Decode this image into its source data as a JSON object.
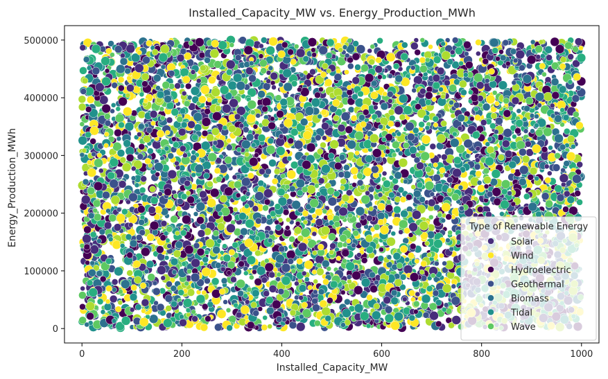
{
  "chart_data": {
    "type": "scatter",
    "title": "Installed_Capacity_MW vs. Energy_Production_MWh",
    "xlabel": "Installed_Capacity_MW",
    "ylabel": "Energy_Production_MWh",
    "xlim": [
      -35,
      1035
    ],
    "ylim": [
      -25000,
      525000
    ],
    "xticks": [
      0,
      200,
      400,
      600,
      800,
      1000
    ],
    "xtick_labels": [
      "0",
      "200",
      "400",
      "600",
      "800",
      "1000"
    ],
    "yticks": [
      0,
      100000,
      200000,
      300000,
      400000,
      500000
    ],
    "ytick_labels": [
      "0",
      "100000",
      "200000",
      "300000",
      "400000",
      "500000"
    ],
    "grid": false,
    "legend": {
      "title": "Type of Renewable Energy",
      "placement": "lower-right",
      "entries": [
        {
          "label": "Solar",
          "color": "#472d7b"
        },
        {
          "label": "Wind",
          "color": "#fde725"
        },
        {
          "label": "Hydroelectric",
          "color": "#440154"
        },
        {
          "label": "Geothermal",
          "color": "#3b528b"
        },
        {
          "label": "Biomass",
          "color": "#2c728e"
        },
        {
          "label": "Tidal",
          "color": "#21918c"
        },
        {
          "label": "Wave",
          "color": "#5ec962"
        }
      ]
    },
    "series_colors": [
      "#440154",
      "#472d7b",
      "#3b528b",
      "#2c728e",
      "#21918c",
      "#28ae80",
      "#5ec962",
      "#addc30",
      "#fde725"
    ],
    "series": [
      {
        "name": "Solar",
        "x_range": [
          0,
          1000
        ],
        "y_range": [
          1000,
          500000
        ],
        "approx_points": 1000
      },
      {
        "name": "Wind",
        "x_range": [
          0,
          1000
        ],
        "y_range": [
          1000,
          500000
        ],
        "approx_points": 1000
      },
      {
        "name": "Hydroelectric",
        "x_range": [
          0,
          1000
        ],
        "y_range": [
          1000,
          500000
        ],
        "approx_points": 1000
      },
      {
        "name": "Geothermal",
        "x_range": [
          0,
          1000
        ],
        "y_range": [
          1000,
          500000
        ],
        "approx_points": 1000
      },
      {
        "name": "Biomass",
        "x_range": [
          0,
          1000
        ],
        "y_range": [
          1000,
          500000
        ],
        "approx_points": 1000
      },
      {
        "name": "Tidal",
        "x_range": [
          0,
          1000
        ],
        "y_range": [
          1000,
          500000
        ],
        "approx_points": 1000
      },
      {
        "name": "Wave",
        "x_range": [
          0,
          1000
        ],
        "y_range": [
          1000,
          500000
        ],
        "approx_points": 1000
      }
    ]
  }
}
